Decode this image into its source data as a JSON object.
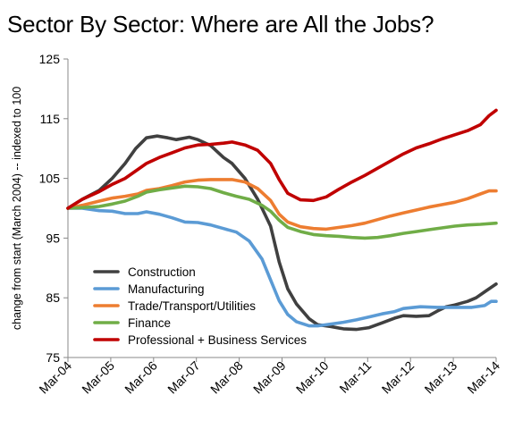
{
  "chart_data": {
    "type": "line",
    "title": "Sector By Sector: Where are All the Jobs?",
    "xlabel": "",
    "ylabel": "change from start (March 2004) -- indexed to 100",
    "ylim": [
      75,
      125
    ],
    "y_ticks": [
      75,
      85,
      95,
      105,
      115,
      125
    ],
    "x_range": [
      2004.167,
      2014.167
    ],
    "x_ticks": [
      {
        "label": "Mar-04",
        "x": 2004.167
      },
      {
        "label": "Mar-05",
        "x": 2005.167
      },
      {
        "label": "Mar-06",
        "x": 2006.167
      },
      {
        "label": "Mar-07",
        "x": 2007.167
      },
      {
        "label": "Mar-08",
        "x": 2008.167
      },
      {
        "label": "Mar-09",
        "x": 2009.167
      },
      {
        "label": "Mar-10",
        "x": 2010.167
      },
      {
        "label": "Mar-11",
        "x": 2011.167
      },
      {
        "label": "Mar-12",
        "x": 2012.167
      },
      {
        "label": "Mar-13",
        "x": 2013.167
      },
      {
        "label": "Mar-14",
        "x": 2014.167
      }
    ],
    "grid": false,
    "legend": "inside-bottom-left",
    "series": [
      {
        "name": "Construction",
        "color": "#404040",
        "points": [
          [
            2004.167,
            100.0
          ],
          [
            2004.5,
            101.5
          ],
          [
            2004.9,
            103.0
          ],
          [
            2005.2,
            105.0
          ],
          [
            2005.5,
            107.5
          ],
          [
            2005.75,
            110.0
          ],
          [
            2006.0,
            111.8
          ],
          [
            2006.25,
            112.1
          ],
          [
            2006.5,
            111.8
          ],
          [
            2006.7,
            111.5
          ],
          [
            2007.0,
            111.9
          ],
          [
            2007.2,
            111.5
          ],
          [
            2007.5,
            110.5
          ],
          [
            2007.8,
            108.5
          ],
          [
            2008.0,
            107.5
          ],
          [
            2008.3,
            105.0
          ],
          [
            2008.6,
            101.5
          ],
          [
            2008.9,
            97.0
          ],
          [
            2009.1,
            91.0
          ],
          [
            2009.3,
            86.5
          ],
          [
            2009.5,
            84.0
          ],
          [
            2009.8,
            81.5
          ],
          [
            2010.0,
            80.5
          ],
          [
            2010.3,
            80.2
          ],
          [
            2010.6,
            79.8
          ],
          [
            2010.9,
            79.7
          ],
          [
            2011.2,
            80.0
          ],
          [
            2011.5,
            80.8
          ],
          [
            2011.8,
            81.6
          ],
          [
            2012.0,
            82.0
          ],
          [
            2012.3,
            81.9
          ],
          [
            2012.6,
            82.0
          ],
          [
            2012.8,
            82.8
          ],
          [
            2013.0,
            83.5
          ],
          [
            2013.2,
            83.8
          ],
          [
            2013.5,
            84.4
          ],
          [
            2013.7,
            85.0
          ],
          [
            2013.9,
            86.0
          ],
          [
            2014.167,
            87.3
          ]
        ]
      },
      {
        "name": "Manufacturing",
        "color": "#5B9BD5",
        "points": [
          [
            2004.167,
            100.0
          ],
          [
            2004.5,
            100.0
          ],
          [
            2004.9,
            99.6
          ],
          [
            2005.2,
            99.5
          ],
          [
            2005.5,
            99.1
          ],
          [
            2005.8,
            99.1
          ],
          [
            2006.0,
            99.4
          ],
          [
            2006.3,
            99.0
          ],
          [
            2006.6,
            98.4
          ],
          [
            2006.9,
            97.7
          ],
          [
            2007.2,
            97.6
          ],
          [
            2007.5,
            97.2
          ],
          [
            2007.8,
            96.6
          ],
          [
            2008.1,
            96.0
          ],
          [
            2008.4,
            94.5
          ],
          [
            2008.7,
            91.5
          ],
          [
            2008.9,
            88.0
          ],
          [
            2009.1,
            84.5
          ],
          [
            2009.3,
            82.2
          ],
          [
            2009.5,
            81.0
          ],
          [
            2009.8,
            80.3
          ],
          [
            2010.0,
            80.3
          ],
          [
            2010.3,
            80.6
          ],
          [
            2010.6,
            80.9
          ],
          [
            2010.9,
            81.3
          ],
          [
            2011.2,
            81.8
          ],
          [
            2011.5,
            82.3
          ],
          [
            2011.8,
            82.7
          ],
          [
            2012.0,
            83.2
          ],
          [
            2012.4,
            83.5
          ],
          [
            2012.8,
            83.4
          ],
          [
            2013.2,
            83.4
          ],
          [
            2013.6,
            83.4
          ],
          [
            2013.9,
            83.7
          ],
          [
            2014.05,
            84.4
          ],
          [
            2014.167,
            84.4
          ]
        ]
      },
      {
        "name": "Trade/Transport/Utilities",
        "color": "#ED7D31",
        "points": [
          [
            2004.167,
            100.0
          ],
          [
            2004.5,
            100.5
          ],
          [
            2004.9,
            101.2
          ],
          [
            2005.2,
            101.7
          ],
          [
            2005.5,
            102.0
          ],
          [
            2005.8,
            102.4
          ],
          [
            2006.0,
            103.0
          ],
          [
            2006.3,
            103.3
          ],
          [
            2006.6,
            103.8
          ],
          [
            2006.9,
            104.4
          ],
          [
            2007.2,
            104.7
          ],
          [
            2007.5,
            104.8
          ],
          [
            2007.8,
            104.8
          ],
          [
            2008.0,
            104.8
          ],
          [
            2008.3,
            104.4
          ],
          [
            2008.6,
            103.3
          ],
          [
            2008.9,
            101.3
          ],
          [
            2009.1,
            99.0
          ],
          [
            2009.3,
            97.7
          ],
          [
            2009.6,
            96.9
          ],
          [
            2009.9,
            96.6
          ],
          [
            2010.2,
            96.5
          ],
          [
            2010.5,
            96.8
          ],
          [
            2010.8,
            97.1
          ],
          [
            2011.1,
            97.5
          ],
          [
            2011.4,
            98.1
          ],
          [
            2011.7,
            98.7
          ],
          [
            2012.0,
            99.2
          ],
          [
            2012.3,
            99.7
          ],
          [
            2012.6,
            100.2
          ],
          [
            2012.9,
            100.6
          ],
          [
            2013.2,
            101.0
          ],
          [
            2013.5,
            101.6
          ],
          [
            2013.8,
            102.4
          ],
          [
            2014.0,
            102.9
          ],
          [
            2014.167,
            102.9
          ]
        ]
      },
      {
        "name": "Finance",
        "color": "#70AD47",
        "points": [
          [
            2004.167,
            100.0
          ],
          [
            2004.5,
            100.1
          ],
          [
            2004.9,
            100.3
          ],
          [
            2005.2,
            100.7
          ],
          [
            2005.5,
            101.2
          ],
          [
            2005.8,
            102.0
          ],
          [
            2006.0,
            102.7
          ],
          [
            2006.3,
            103.1
          ],
          [
            2006.6,
            103.4
          ],
          [
            2006.9,
            103.7
          ],
          [
            2007.2,
            103.6
          ],
          [
            2007.5,
            103.3
          ],
          [
            2007.8,
            102.6
          ],
          [
            2008.1,
            102.0
          ],
          [
            2008.4,
            101.5
          ],
          [
            2008.7,
            100.5
          ],
          [
            2008.9,
            99.5
          ],
          [
            2009.1,
            98.0
          ],
          [
            2009.3,
            96.8
          ],
          [
            2009.6,
            96.1
          ],
          [
            2009.9,
            95.6
          ],
          [
            2010.2,
            95.4
          ],
          [
            2010.5,
            95.3
          ],
          [
            2010.8,
            95.1
          ],
          [
            2011.1,
            95.0
          ],
          [
            2011.4,
            95.1
          ],
          [
            2011.7,
            95.4
          ],
          [
            2012.0,
            95.8
          ],
          [
            2012.3,
            96.1
          ],
          [
            2012.6,
            96.4
          ],
          [
            2012.9,
            96.7
          ],
          [
            2013.2,
            97.0
          ],
          [
            2013.5,
            97.2
          ],
          [
            2013.8,
            97.3
          ],
          [
            2014.167,
            97.5
          ]
        ]
      },
      {
        "name": "Professional + Business Services",
        "color": "#C00000",
        "points": [
          [
            2004.167,
            100.0
          ],
          [
            2004.5,
            101.5
          ],
          [
            2004.9,
            102.8
          ],
          [
            2005.2,
            104.0
          ],
          [
            2005.5,
            105.0
          ],
          [
            2005.8,
            106.5
          ],
          [
            2006.0,
            107.5
          ],
          [
            2006.3,
            108.5
          ],
          [
            2006.6,
            109.3
          ],
          [
            2006.9,
            110.1
          ],
          [
            2007.2,
            110.6
          ],
          [
            2007.5,
            110.7
          ],
          [
            2007.8,
            110.9
          ],
          [
            2008.0,
            111.1
          ],
          [
            2008.3,
            110.6
          ],
          [
            2008.6,
            109.7
          ],
          [
            2008.9,
            107.5
          ],
          [
            2009.1,
            104.8
          ],
          [
            2009.3,
            102.5
          ],
          [
            2009.6,
            101.4
          ],
          [
            2009.9,
            101.3
          ],
          [
            2010.2,
            101.9
          ],
          [
            2010.5,
            103.2
          ],
          [
            2010.8,
            104.4
          ],
          [
            2011.1,
            105.5
          ],
          [
            2011.4,
            106.7
          ],
          [
            2011.7,
            107.9
          ],
          [
            2012.0,
            109.1
          ],
          [
            2012.3,
            110.1
          ],
          [
            2012.6,
            110.8
          ],
          [
            2012.9,
            111.6
          ],
          [
            2013.2,
            112.3
          ],
          [
            2013.5,
            113.0
          ],
          [
            2013.8,
            114.0
          ],
          [
            2014.0,
            115.5
          ],
          [
            2014.167,
            116.4
          ]
        ]
      }
    ]
  }
}
